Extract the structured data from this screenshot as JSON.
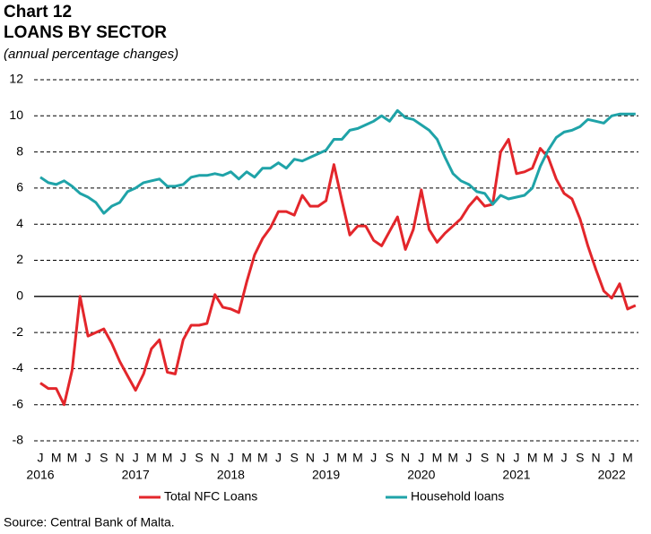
{
  "chart_data": {
    "type": "line",
    "chart_label": "Chart 12",
    "title": "LOANS BY SECTOR",
    "subtitle": "(annual percentage changes)",
    "source": "Source: Central Bank of Malta.",
    "categories": [
      "J",
      null,
      "M",
      null,
      "M",
      null,
      "J",
      null,
      "S",
      null,
      "N",
      null,
      "J",
      null,
      "M",
      null,
      "M",
      null,
      "J",
      null,
      "S",
      null,
      "N",
      null,
      "J",
      null,
      "M",
      null,
      "M",
      null,
      "J",
      null,
      "S",
      null,
      "N",
      null,
      "J",
      null,
      "M",
      null,
      "M",
      null,
      "J",
      null,
      "S",
      null,
      "N",
      null,
      "J",
      null,
      "M",
      null,
      "M",
      null,
      "J",
      null,
      "S",
      null,
      "N",
      null,
      "J",
      null,
      "M",
      null,
      "M",
      null,
      "J",
      null,
      "S",
      null,
      "N",
      null,
      "J",
      null,
      "M",
      null
    ],
    "year_labels": [
      "2016",
      "2017",
      "2018",
      "2019",
      "2020",
      "2021",
      "2022"
    ],
    "ylim": [
      -8,
      12
    ],
    "yticks": [
      -8,
      -6,
      -4,
      -2,
      0,
      2,
      4,
      6,
      8,
      10,
      12
    ],
    "grid": true,
    "series": [
      {
        "name": "Total NFC Loans",
        "color": "#e3262b",
        "values": [
          -4.8,
          -5.1,
          -5.1,
          -6.0,
          -4.1,
          0.0,
          -2.2,
          -2.0,
          -1.8,
          -2.6,
          -3.6,
          -4.4,
          -5.2,
          -4.3,
          -2.9,
          -2.4,
          -4.2,
          -4.3,
          -2.4,
          -1.6,
          -1.6,
          -1.5,
          0.1,
          -0.6,
          -0.7,
          -0.9,
          0.8,
          2.3,
          3.2,
          3.8,
          4.7,
          4.7,
          4.5,
          5.6,
          5.0,
          5.0,
          5.3,
          7.3,
          5.3,
          3.4,
          3.9,
          3.9,
          3.1,
          2.8,
          3.6,
          4.4,
          2.6,
          3.7,
          5.9,
          3.7,
          3.0,
          3.5,
          3.9,
          4.3,
          5.0,
          5.5,
          5.0,
          5.1,
          8.0,
          8.7,
          6.8,
          6.9,
          7.1,
          8.2,
          7.7,
          6.5,
          5.7,
          5.4,
          4.3,
          2.8,
          1.5,
          0.3,
          -0.1,
          0.7,
          -0.7,
          -0.5
        ]
      },
      {
        "name": "Household loans",
        "color": "#1fa3a8",
        "values": [
          6.6,
          6.3,
          6.2,
          6.4,
          6.1,
          5.7,
          5.5,
          5.2,
          4.6,
          5.0,
          5.2,
          5.8,
          6.0,
          6.3,
          6.4,
          6.5,
          6.1,
          6.1,
          6.2,
          6.6,
          6.7,
          6.7,
          6.8,
          6.7,
          6.9,
          6.5,
          6.9,
          6.6,
          7.1,
          7.1,
          7.4,
          7.1,
          7.6,
          7.5,
          7.7,
          7.9,
          8.1,
          8.7,
          8.7,
          9.2,
          9.3,
          9.5,
          9.7,
          10.0,
          9.7,
          10.3,
          9.9,
          9.8,
          9.5,
          9.2,
          8.7,
          7.7,
          6.8,
          6.4,
          6.2,
          5.8,
          5.7,
          5.1,
          5.6,
          5.4,
          5.5,
          5.6,
          6.0,
          7.2,
          8.1,
          8.8,
          9.1,
          9.2,
          9.4,
          9.8,
          9.7,
          9.6,
          10.0,
          10.1,
          10.1,
          10.1
        ]
      }
    ]
  }
}
